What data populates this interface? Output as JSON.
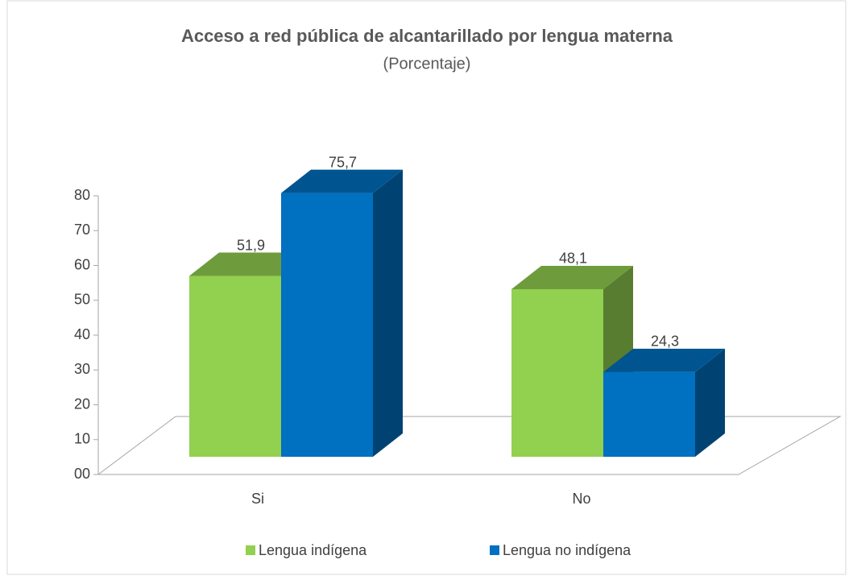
{
  "chart_data": {
    "type": "bar3d",
    "title": "Acceso a red pública de alcantarillado por lengua materna",
    "subtitle": "(Porcentaje)",
    "categories": [
      "Si",
      "No"
    ],
    "series": [
      {
        "name": "Lengua indígena",
        "color": "#92d050",
        "values": [
          51.9,
          48.1
        ],
        "value_labels": [
          "51,9",
          "48,1"
        ]
      },
      {
        "name": "Lengua no indígena",
        "color": "#0070c0",
        "values": [
          75.7,
          24.3
        ],
        "value_labels": [
          "75,7",
          "24,3"
        ]
      }
    ],
    "ylim": [
      0,
      80
    ],
    "yticks": [
      {
        "value": 0,
        "label": "00"
      },
      10,
      20,
      30,
      40,
      50,
      60,
      70,
      80
    ],
    "legend": "bottom"
  }
}
